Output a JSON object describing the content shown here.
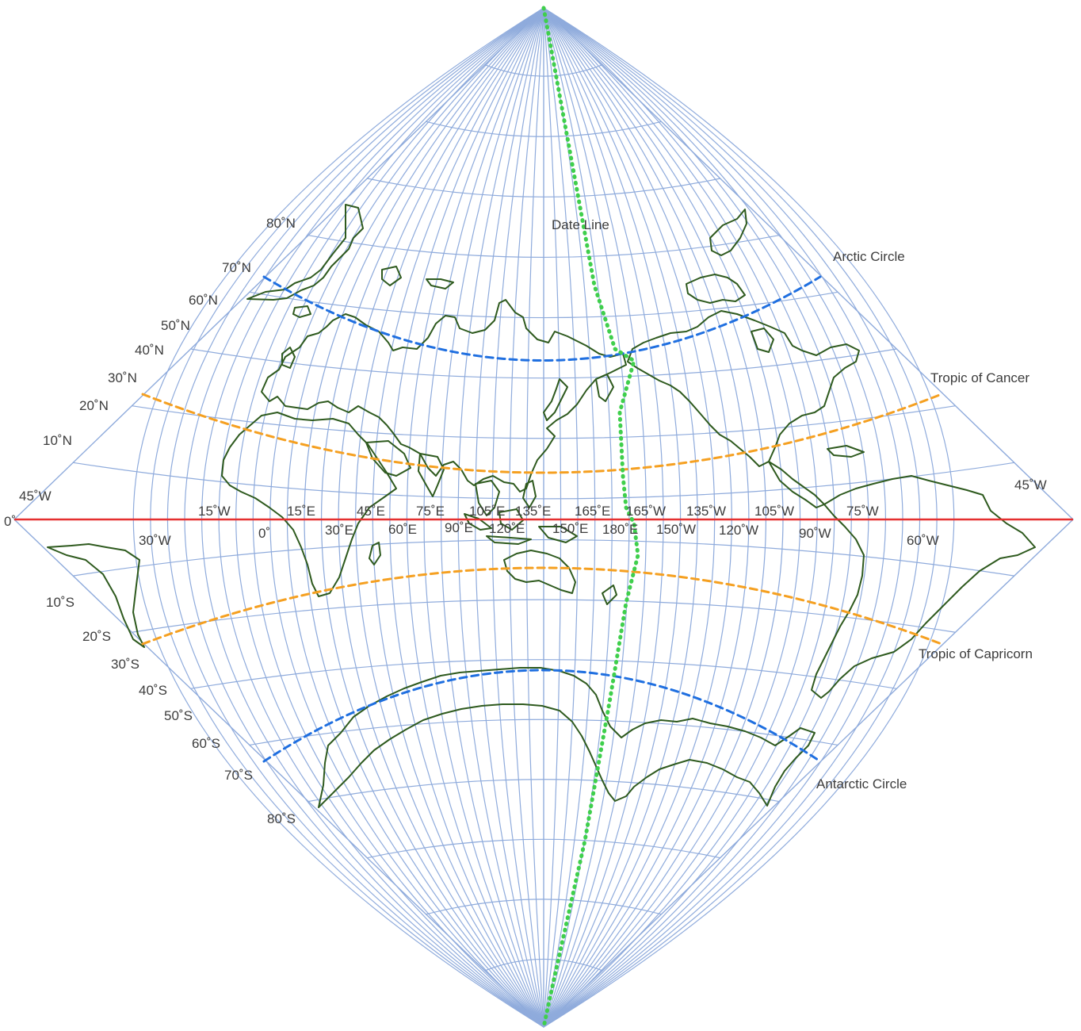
{
  "colors": {
    "graticule": "#8fabdc",
    "coast": "#2e5a1e",
    "equator": "#e53030",
    "tropic": "#f5a021",
    "polar_circle": "#1f6fe0",
    "date_line": "#3fcf4c"
  },
  "lines": {
    "date_line": "Date Line",
    "arctic_circle": "Arctic Circle",
    "antarctic_circle": "Antarctic Circle",
    "tropic_of_cancer": "Tropic of Cancer",
    "tropic_of_capricorn": "Tropic of Capricorn"
  },
  "latitude_labels_north": [
    "80˚N",
    "70˚N",
    "60˚N",
    "50˚N",
    "40˚N",
    "30˚N",
    "20˚N",
    "10˚N"
  ],
  "latitude_labels_south": [
    "10˚S",
    "20˚S",
    "30˚S",
    "40˚S",
    "50˚S",
    "60˚S",
    "70˚S",
    "80˚S"
  ],
  "equator_label": "0˚",
  "longitude_labels_upper": [
    "15˚W",
    "15˚E",
    "45˚E",
    "75˚E",
    "105˚E",
    "135˚E",
    "165˚E",
    "165˚W",
    "135˚W",
    "105˚W",
    "75˚W"
  ],
  "longitude_labels_lower": [
    "30˚W",
    "0˚",
    "30˚E",
    "60˚E",
    "90˚E",
    "120˚E",
    "150˚E",
    "180˚E",
    "150˚W",
    "120˚W",
    "90˚W",
    "60˚W"
  ],
  "edge_labels": {
    "left": "45˚W",
    "right": "45˚W"
  }
}
